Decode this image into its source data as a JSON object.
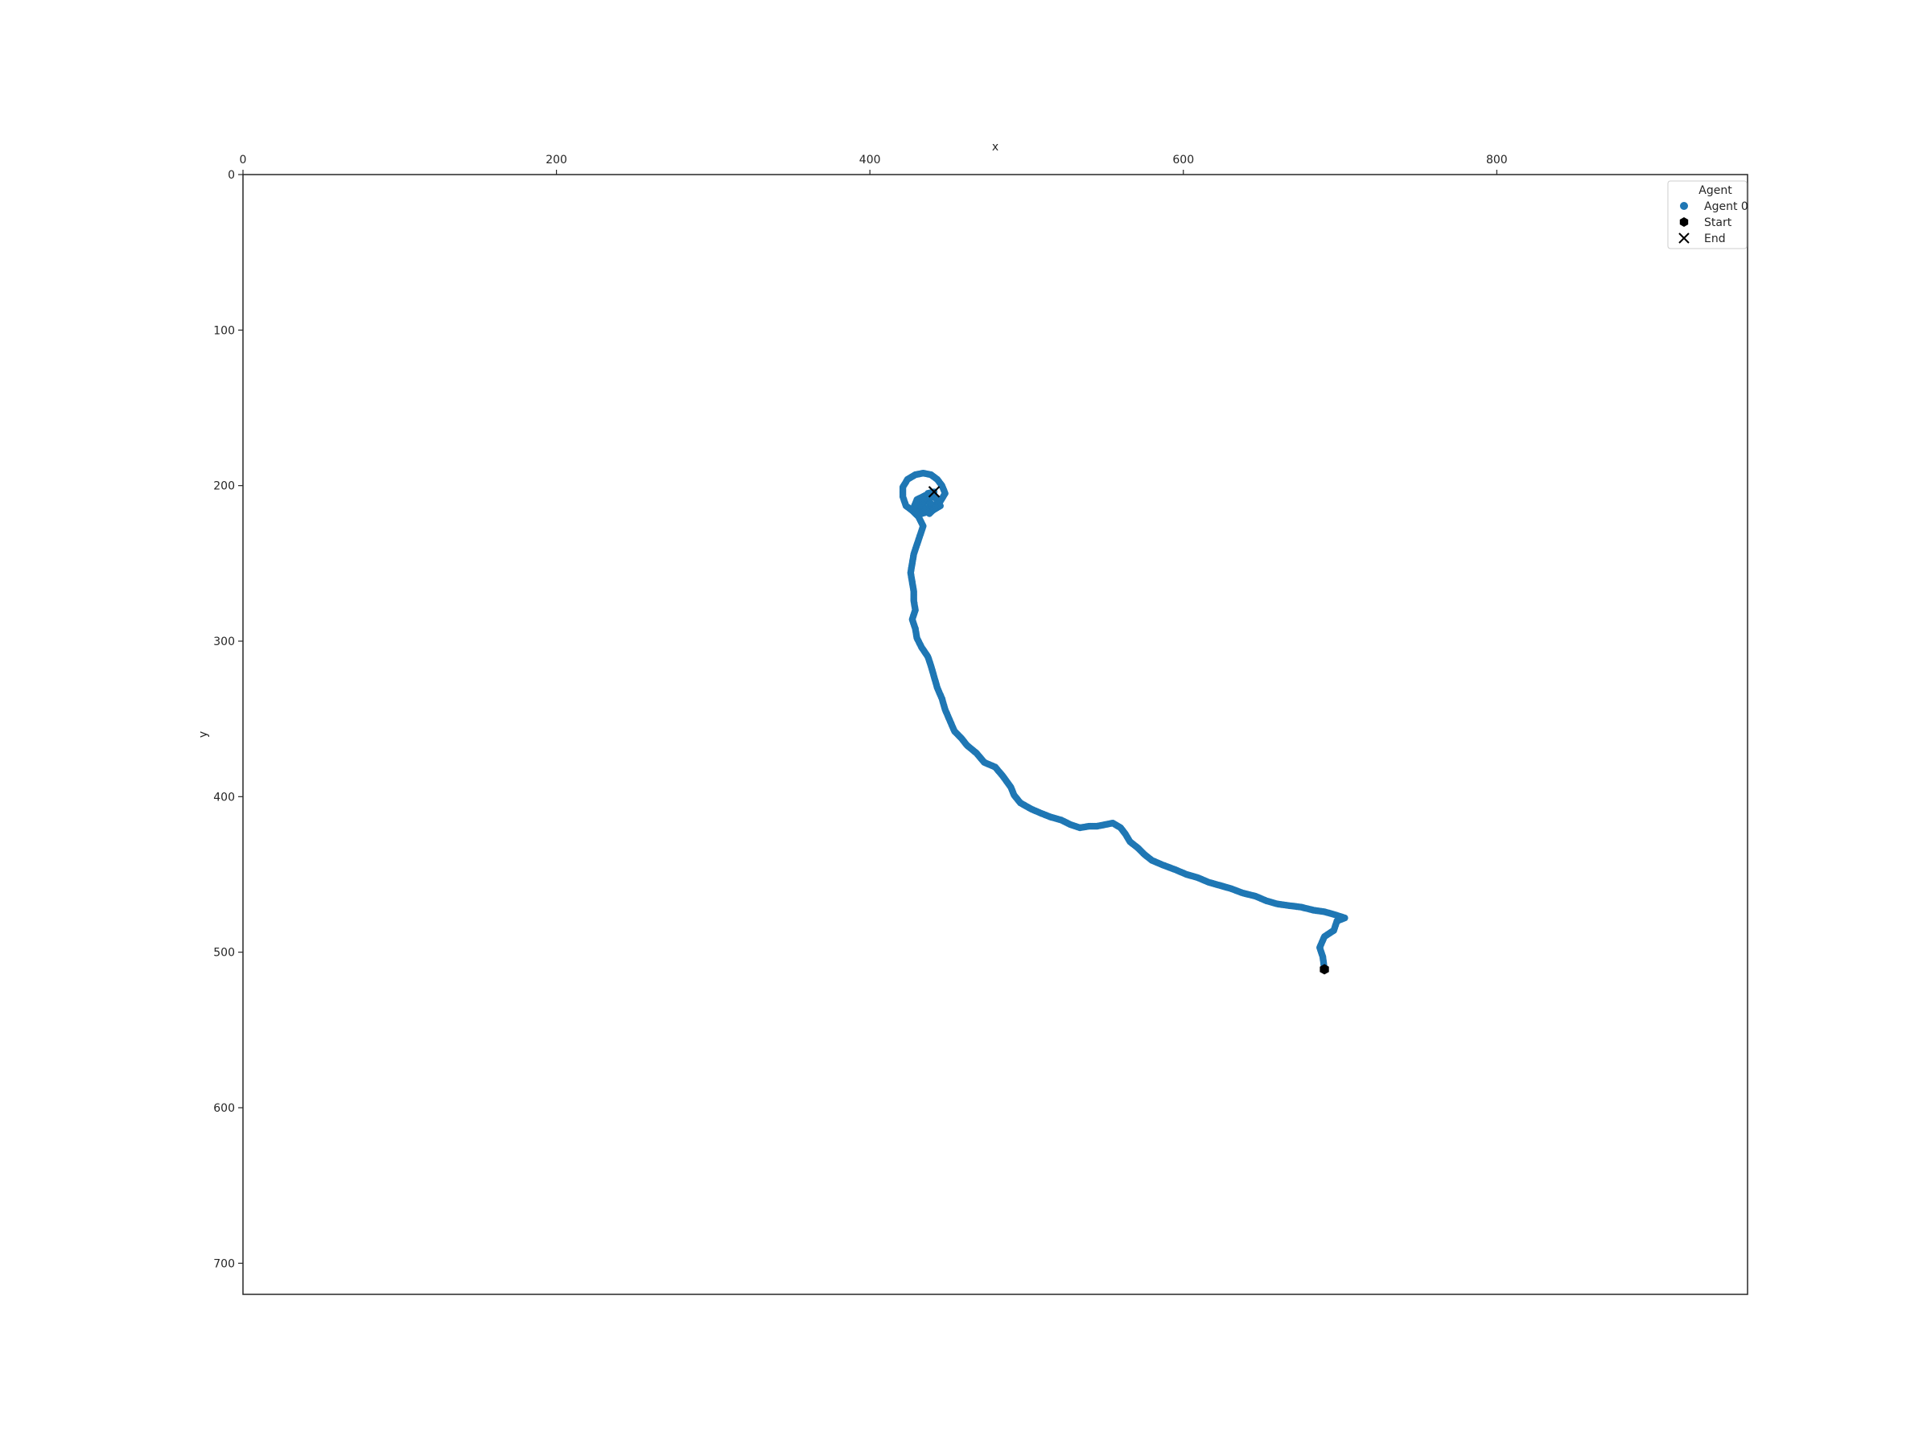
{
  "chart_data": {
    "type": "scatter",
    "title": "",
    "xlabel": "x",
    "ylabel": "y",
    "xlim": [
      0,
      960
    ],
    "ylim": [
      720,
      0
    ],
    "x_axis_position": "top",
    "y_inverted": true,
    "grid": false,
    "xticks": [
      0,
      200,
      400,
      600,
      800
    ],
    "yticks": [
      0,
      100,
      200,
      300,
      400,
      500,
      600,
      700
    ],
    "legend": {
      "title": "Agent",
      "placement": "top-right",
      "entries": [
        {
          "label": "Agent 0",
          "marker": "circle",
          "color": "#1f77b4"
        },
        {
          "label": "Start",
          "marker": "hexagon",
          "color": "#000000"
        },
        {
          "label": "End",
          "marker": "x",
          "color": "#000000"
        }
      ]
    },
    "series": [
      {
        "name": "Agent 0",
        "color": "#1f77b4",
        "path": [
          [
            690,
            511
          ],
          [
            689,
            503
          ],
          [
            687,
            497
          ],
          [
            690,
            490
          ],
          [
            696,
            486
          ],
          [
            698,
            480
          ],
          [
            703,
            478
          ],
          [
            697,
            476
          ],
          [
            690,
            474
          ],
          [
            683,
            473
          ],
          [
            675,
            471
          ],
          [
            667,
            470
          ],
          [
            660,
            469
          ],
          [
            653,
            467
          ],
          [
            646,
            464
          ],
          [
            638,
            462
          ],
          [
            630,
            459
          ],
          [
            623,
            457
          ],
          [
            616,
            455
          ],
          [
            609,
            452
          ],
          [
            602,
            450
          ],
          [
            595,
            447
          ],
          [
            587,
            444
          ],
          [
            580,
            441
          ],
          [
            575,
            437
          ],
          [
            571,
            433
          ],
          [
            566,
            429
          ],
          [
            563,
            424
          ],
          [
            560,
            420
          ],
          [
            555,
            417
          ],
          [
            550,
            418
          ],
          [
            545,
            419
          ],
          [
            540,
            419
          ],
          [
            534,
            420
          ],
          [
            528,
            418
          ],
          [
            522,
            415
          ],
          [
            515,
            413
          ],
          [
            510,
            411
          ],
          [
            503,
            408
          ],
          [
            496,
            404
          ],
          [
            492,
            399
          ],
          [
            490,
            394
          ],
          [
            485,
            387
          ],
          [
            480,
            381
          ],
          [
            473,
            378
          ],
          [
            468,
            372
          ],
          [
            462,
            367
          ],
          [
            458,
            362
          ],
          [
            454,
            358
          ],
          [
            451,
            351
          ],
          [
            448,
            344
          ],
          [
            446,
            337
          ],
          [
            443,
            330
          ],
          [
            441,
            323
          ],
          [
            439,
            316
          ],
          [
            437,
            310
          ],
          [
            433,
            304
          ],
          [
            430,
            298
          ],
          [
            429,
            292
          ],
          [
            427,
            286
          ],
          [
            429,
            280
          ],
          [
            428,
            274
          ],
          [
            428,
            268
          ],
          [
            427,
            262
          ],
          [
            426,
            256
          ],
          [
            427,
            250
          ],
          [
            428,
            244
          ],
          [
            430,
            238
          ],
          [
            432,
            232
          ],
          [
            434,
            226
          ],
          [
            431,
            220
          ],
          [
            427,
            216
          ],
          [
            423,
            213
          ],
          [
            421,
            207
          ],
          [
            421,
            201
          ],
          [
            424,
            196
          ],
          [
            429,
            193
          ],
          [
            434,
            192
          ],
          [
            439,
            193
          ],
          [
            443,
            196
          ],
          [
            446,
            200
          ],
          [
            448,
            205
          ],
          [
            445,
            210
          ],
          [
            440,
            214
          ],
          [
            433,
            215
          ],
          [
            428,
            214
          ],
          [
            430,
            209
          ],
          [
            436,
            206
          ],
          [
            442,
            208
          ],
          [
            445,
            213
          ],
          [
            440,
            216
          ],
          [
            433,
            218
          ],
          [
            427,
            216
          ],
          [
            430,
            211
          ],
          [
            437,
            210
          ],
          [
            442,
            214
          ],
          [
            438,
            218
          ],
          [
            433,
            212
          ],
          [
            437,
            205
          ],
          [
            441,
            204
          ]
        ]
      }
    ],
    "start": {
      "x": 690,
      "y": 511
    },
    "end": {
      "x": 441,
      "y": 204
    }
  }
}
